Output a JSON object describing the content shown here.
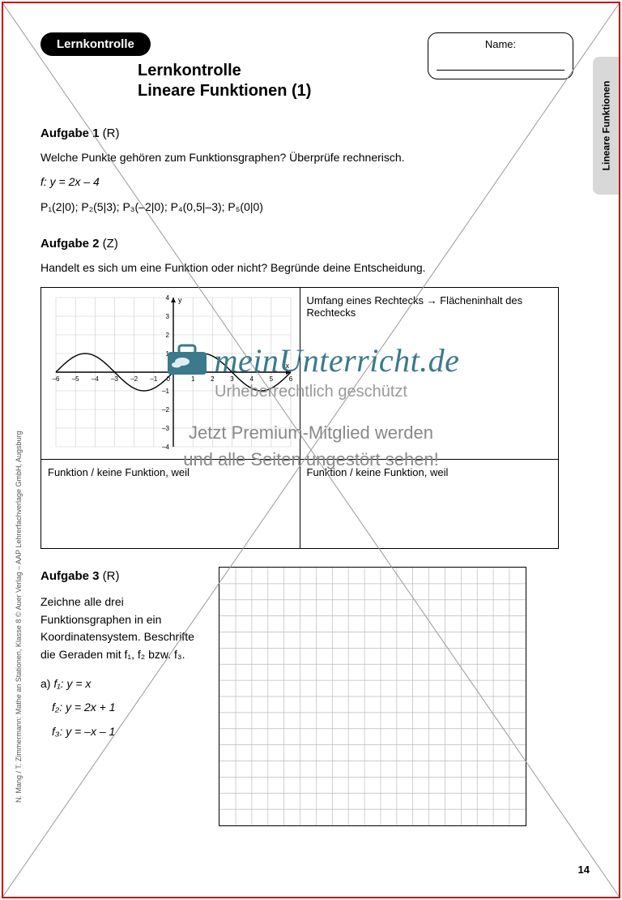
{
  "frame": {
    "border_color": "#cc0000",
    "diagonal_color": "#999999"
  },
  "side_tab": {
    "label": "Lineare Funktionen",
    "bg": "#d8d8d8"
  },
  "header": {
    "pill_label": "Lernkontrolle",
    "title_line1": "Lernkontrolle",
    "title_line2": "Lineare Funktionen (1)",
    "name_label": "Name:"
  },
  "task1": {
    "heading_bold": "Aufgabe 1",
    "heading_suffix": " (R)",
    "prompt": "Welche Punkte gehören zum Funktionsgraphen? Überprüfe rechnerisch.",
    "equation": "f: y = 2x – 4",
    "points": "P₁(2|0); P₂(5|3); P₃(–2|0); P₄(0,5|–3); P₅(0|0)"
  },
  "task2": {
    "heading_bold": "Aufgabe 2",
    "heading_suffix": " (Z)",
    "prompt": "Handelt es sich um eine Funktion oder nicht? Begründe deine Entscheidung.",
    "right_cell_text": "Umfang eines Rechtecks → Flächeninhalt des Rechtecks",
    "answer_label_left": "Funktion / keine Funktion, weil",
    "answer_label_right": "Funktion / keine Funktion, weil",
    "graph": {
      "type": "line",
      "xlim": [
        -6,
        6
      ],
      "ylim": [
        -4,
        4
      ],
      "xtick_step": 1,
      "ytick_step": 1,
      "x_ticklabels": [
        "–6",
        "–5",
        "–4",
        "–3",
        "–2",
        "–1",
        "0",
        "1",
        "2",
        "3",
        "4",
        "5",
        "6"
      ],
      "y_ticklabels": [
        "–4",
        "–3",
        "–2",
        "–1",
        "",
        "1",
        "2",
        "3",
        "4"
      ],
      "grid_color": "#cccccc",
      "axis_color": "#000000",
      "curve_color": "#000000",
      "curve_width": 1.4,
      "amplitude": 1.0,
      "period": 6.0,
      "y_axis_label": "y",
      "x_axis_label": "x",
      "background_color": "#ffffff"
    }
  },
  "task3": {
    "heading_bold": "Aufgabe 3",
    "heading_suffix": " (R)",
    "prompt": "Zeichne alle drei Funktionsgraphen in ein Koordinatensystem. Beschrifte die Geraden mit f₁, f₂ bzw. f₃.",
    "item_a_label": "a)",
    "f1": "f₁: y = x",
    "f2": "f₂: y = 2x + 1",
    "f3": "f₃: y = –x – 1",
    "grid": {
      "cols": 19,
      "rows": 16,
      "cell_size": 20,
      "grid_color": "#bbbbbb",
      "border_color": "#000000"
    }
  },
  "watermark": {
    "brand": "meinUnterricht.de",
    "sub1": "Urheberrechtlich geschützt",
    "sub2_line1": "Jetzt Premium-Mitglied werden",
    "sub2_line2": "und alle Seiten ungestört sehen!",
    "brand_color": "#3a7a8a",
    "text_color": "#888888"
  },
  "footer": {
    "page_number": "14",
    "copyright": "N. Mang / T. Zimmermann: Mathe an Stationen, Klasse 8\n© Auer Verlag – AAP Lehrerfachverlage GmbH, Augsburg"
  }
}
